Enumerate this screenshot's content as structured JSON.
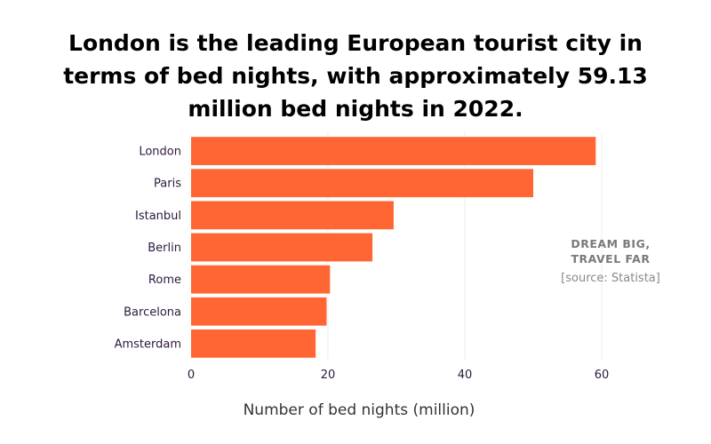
{
  "chart_data": {
    "type": "bar",
    "orientation": "horizontal",
    "title_lines": [
      "London is the leading European tourist city in",
      "terms of bed nights, with approximately 59.13",
      "million bed nights in 2022."
    ],
    "categories": [
      "London",
      "Paris",
      "Istanbul",
      "Berlin",
      "Rome",
      "Barcelona",
      "Amsterdam"
    ],
    "values": [
      59.13,
      50.0,
      29.6,
      26.5,
      20.3,
      19.8,
      18.2
    ],
    "xlabel": "Number of bed nights (million)",
    "ylabel": "",
    "xlim": [
      0,
      60
    ],
    "xticks": [
      "0",
      "20",
      "40",
      "60"
    ],
    "xtick_values": [
      0,
      20,
      40,
      60
    ],
    "grid": true,
    "bar_color": "#ff6633",
    "grid_color": "#ececec"
  },
  "watermark": {
    "line1": "DREAM BIG,",
    "line2": "TRAVEL FAR",
    "source": "[source: Statista]"
  }
}
